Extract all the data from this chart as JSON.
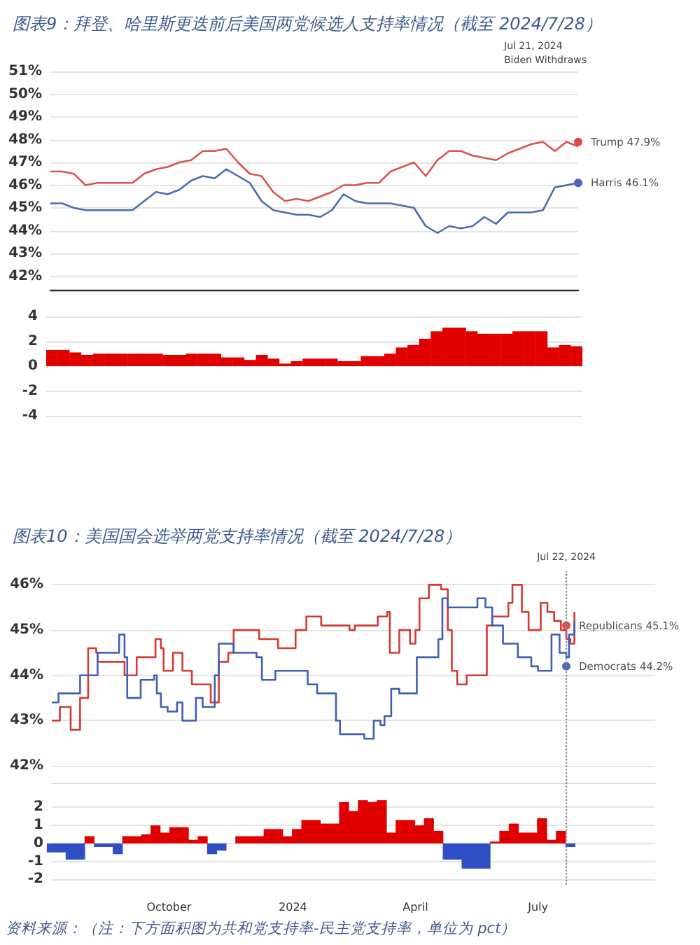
{
  "chart_data": [
    {
      "type": "line",
      "title": "图表9：拜登、哈里斯更迭前后美国两党候选人支持率情况（截至 2024/7/28）",
      "categories": [
        null,
        null,
        null,
        null,
        null,
        null,
        null,
        null,
        null,
        null,
        null,
        null,
        null,
        null,
        null,
        null,
        null,
        null,
        null,
        null,
        null,
        null,
        null,
        null,
        null,
        null,
        null,
        null,
        null,
        null,
        null,
        null,
        null,
        null,
        null,
        null,
        null,
        null,
        null,
        null,
        null,
        null,
        null,
        null,
        null,
        null
      ],
      "ylim": [
        41.4,
        51
      ],
      "yticks": [
        {
          "value": 42,
          "label": "42%"
        },
        {
          "value": 43,
          "label": "43%"
        },
        {
          "value": 44,
          "label": "44%"
        },
        {
          "value": 45,
          "label": "45%"
        },
        {
          "value": 46,
          "label": "46%"
        },
        {
          "value": 47,
          "label": "47%"
        },
        {
          "value": 48,
          "label": "48%"
        },
        {
          "value": 49,
          "label": "49%"
        },
        {
          "value": 50,
          "label": "50%"
        },
        {
          "value": 51,
          "label": "51%"
        }
      ],
      "grid": "y",
      "marker": "none",
      "line_style": "solid",
      "annotations": [
        "Jul 21, 2024\nBiden Withdraws"
      ],
      "series": [
        {
          "color": "#d9534f",
          "values": [
            46.6,
            46.6,
            46.5,
            46.0,
            46.1,
            46.1,
            46.1,
            46.1,
            46.5,
            46.7,
            46.8,
            47.0,
            47.1,
            47.5,
            47.5,
            47.6,
            47.0,
            46.5,
            46.4,
            45.7,
            45.3,
            45.4,
            45.3,
            45.5,
            45.7,
            46.0,
            46.0,
            46.1,
            46.1,
            46.6,
            46.8,
            47.0,
            46.4,
            47.1,
            47.5,
            47.5,
            47.3,
            47.2,
            47.1,
            47.4,
            47.6,
            47.8,
            47.9,
            47.5,
            47.9,
            47.7
          ]
        },
        {
          "color": "#4a6cb0",
          "values": [
            45.2,
            45.2,
            45.0,
            44.9,
            44.9,
            44.9,
            44.9,
            44.9,
            45.3,
            45.7,
            45.6,
            45.8,
            46.2,
            46.4,
            46.3,
            46.7,
            46.4,
            46.1,
            45.3,
            44.9,
            44.8,
            44.7,
            44.7,
            44.6,
            44.9,
            45.6,
            45.3,
            45.2,
            45.2,
            45.2,
            45.1,
            45.0,
            44.2,
            43.9,
            44.2,
            44.1,
            44.2,
            44.6,
            44.3,
            44.8,
            44.8,
            44.8,
            44.9,
            45.9,
            46.0,
            46.1
          ]
        },
        {
          "type": "scatter",
          "marker": "circle",
          "name": "Trump 47.9%",
          "color": "#d62020",
          "values": [
            null,
            null,
            null,
            null,
            null,
            null,
            null,
            null,
            null,
            null,
            null,
            null,
            null,
            null,
            null,
            null,
            null,
            null,
            null,
            null,
            null,
            null,
            null,
            null,
            null,
            null,
            null,
            null,
            null,
            null,
            null,
            null,
            null,
            null,
            null,
            null,
            null,
            null,
            null,
            null,
            null,
            null,
            null,
            null,
            null,
            47.9
          ]
        },
        {
          "type": "scatter",
          "marker": "circle",
          "name": "Harris 46.1%",
          "color": "#2040b0",
          "values": [
            null,
            null,
            null,
            null,
            null,
            null,
            null,
            null,
            null,
            null,
            null,
            null,
            null,
            null,
            null,
            null,
            null,
            null,
            null,
            null,
            null,
            null,
            null,
            null,
            null,
            null,
            null,
            null,
            null,
            null,
            null,
            null,
            null,
            null,
            null,
            null,
            null,
            null,
            null,
            null,
            null,
            null,
            null,
            null,
            null,
            46.1
          ]
        }
      ]
    },
    {
      "type": "bar",
      "categories": [
        null,
        null,
        null,
        null,
        null,
        null,
        null,
        null,
        null,
        null,
        null,
        null,
        null,
        null,
        null,
        null,
        null,
        null,
        null,
        null,
        null,
        null,
        null,
        null,
        null,
        null,
        null,
        null,
        null,
        null,
        null,
        null,
        null,
        null,
        null,
        null,
        null,
        null,
        null,
        null,
        null,
        null,
        null,
        null,
        null,
        null
      ],
      "ylim": [
        -4,
        4
      ],
      "yticks": [
        -4,
        -2,
        0,
        2,
        4
      ],
      "grid": "y",
      "series": [
        {
          "color": "#e00000",
          "values": [
            1.3,
            1.3,
            1.1,
            0.9,
            1.0,
            1.0,
            1.0,
            1.0,
            1.0,
            1.0,
            0.9,
            0.9,
            1.0,
            1.0,
            1.0,
            0.7,
            0.7,
            0.5,
            0.9,
            0.6,
            0.2,
            0.4,
            0.6,
            0.6,
            0.6,
            0.4,
            0.4,
            0.8,
            0.8,
            1.0,
            1.5,
            1.7,
            2.2,
            2.8,
            3.1,
            3.1,
            2.8,
            2.6,
            2.6,
            2.6,
            2.8,
            2.8,
            2.8,
            1.5,
            1.7,
            1.6
          ]
        }
      ]
    },
    {
      "type": "step",
      "title": "图表10：美国国会选举两党支持率情况（截至 2024/7/28）",
      "xlim": [
        "2023-07-06",
        "2024-09-26"
      ],
      "ylim": [
        41.6,
        46.3
      ],
      "yticks": [
        {
          "value": 42,
          "label": "42%"
        },
        {
          "value": 43,
          "label": "43%"
        },
        {
          "value": 44,
          "label": "44%"
        },
        {
          "value": 45,
          "label": "45%"
        },
        {
          "value": 46,
          "label": "46%"
        }
      ],
      "tick_labels": "y",
      "grid": "y",
      "marker": "none",
      "line_style": "solid",
      "ref_lines": [
        {
          "axis": "x",
          "value": "2024-07-22",
          "label": "Jul 22, 2024",
          "color": "#8a8a8a",
          "line_style": "dotted"
        }
      ],
      "series": [
        {
          "color": "#d23a32",
          "x": [
            "2023-07-06",
            "2023-07-12",
            "2023-07-20",
            "2023-07-27",
            "2023-08-02",
            "2023-08-08",
            "2023-08-09",
            "2023-08-29",
            "2023-09-07",
            "2023-09-21",
            "2023-09-25",
            "2023-09-27",
            "2023-10-04",
            "2023-10-11",
            "2023-10-18",
            "2023-11-01",
            "2023-11-07",
            "2023-11-14",
            "2023-11-18",
            "2023-12-07",
            "2023-12-21",
            "2024-01-03",
            "2024-01-11",
            "2024-01-22",
            "2024-02-12",
            "2024-02-16",
            "2024-03-04",
            "2024-03-11",
            "2024-03-13",
            "2024-03-20",
            "2024-03-28",
            "2024-04-01",
            "2024-04-04",
            "2024-04-11",
            "2024-04-20",
            "2024-04-25",
            "2024-04-28",
            "2024-05-02",
            "2024-05-09",
            "2024-05-24",
            "2024-05-28",
            "2024-06-09",
            "2024-06-12",
            "2024-06-19",
            "2024-06-24",
            "2024-07-03",
            "2024-07-08",
            "2024-07-13",
            "2024-07-18",
            "2024-07-22",
            "2024-07-25",
            "2024-07-28"
          ],
          "values": [
            43.0,
            43.3,
            42.8,
            43.5,
            44.6,
            44.5,
            44.3,
            44.0,
            44.4,
            44.8,
            44.6,
            44.1,
            44.5,
            44.1,
            43.8,
            43.4,
            44.3,
            44.5,
            45.0,
            44.8,
            44.6,
            45.0,
            45.3,
            45.1,
            45.0,
            45.1,
            45.3,
            45.4,
            44.5,
            45.0,
            44.7,
            45.0,
            45.7,
            46.0,
            45.9,
            45.0,
            44.1,
            43.8,
            44.0,
            45.1,
            45.3,
            45.6,
            46.0,
            45.4,
            45.0,
            45.6,
            45.4,
            45.2,
            45.0,
            44.8,
            44.7,
            45.4
          ]
        },
        {
          "color": "#3f5fb5",
          "x": [
            "2023-07-06",
            "2023-07-11",
            "2023-07-27",
            "2023-08-09",
            "2023-08-25",
            "2023-08-29",
            "2023-08-31",
            "2023-09-10",
            "2023-09-20",
            "2023-09-22",
            "2023-09-25",
            "2023-09-30",
            "2023-10-07",
            "2023-10-11",
            "2023-10-21",
            "2023-10-26",
            "2023-11-04",
            "2023-11-07",
            "2023-11-18",
            "2023-12-05",
            "2023-12-09",
            "2023-12-19",
            "2024-01-12",
            "2024-01-19",
            "2024-02-02",
            "2024-02-05",
            "2024-02-23",
            "2024-03-01",
            "2024-03-06",
            "2024-03-09",
            "2024-03-14",
            "2024-03-20",
            "2024-04-02",
            "2024-04-18",
            "2024-04-21",
            "2024-04-25",
            "2024-05-17",
            "2024-05-23",
            "2024-05-28",
            "2024-06-05",
            "2024-06-16",
            "2024-06-26",
            "2024-07-01",
            "2024-07-11",
            "2024-07-17",
            "2024-07-22",
            "2024-07-24",
            "2024-07-28"
          ],
          "values": [
            43.4,
            43.6,
            44.0,
            44.5,
            44.9,
            44.4,
            43.5,
            43.9,
            44.0,
            43.6,
            43.3,
            43.2,
            43.4,
            43.0,
            43.5,
            43.3,
            44.0,
            44.7,
            44.5,
            44.4,
            43.9,
            44.1,
            43.8,
            43.6,
            43.0,
            42.7,
            42.6,
            43.0,
            42.9,
            43.1,
            43.7,
            43.6,
            44.4,
            44.8,
            45.7,
            45.5,
            45.7,
            45.5,
            45.1,
            44.7,
            44.4,
            44.2,
            44.1,
            44.9,
            44.5,
            44.4,
            44.9,
            45.2
          ]
        },
        {
          "type": "scatter",
          "marker": "circle",
          "name": "Republicans 45.1%",
          "color": "#d62020",
          "x": [
            "2024-07-22"
          ],
          "values": [
            45.1
          ]
        },
        {
          "type": "scatter",
          "marker": "circle",
          "name": "Democrats 44.2%",
          "color": "#2040b0",
          "x": [
            "2024-07-22"
          ],
          "values": [
            44.2
          ]
        }
      ]
    },
    {
      "type": "bar",
      "xlim": [
        "2023-07-06",
        "2024-09-26"
      ],
      "xticks": [
        {
          "value": "2023-10-01",
          "label": "October"
        },
        {
          "value": "2024-01-01",
          "label": "2024"
        },
        {
          "value": "2024-04-01",
          "label": "April"
        },
        {
          "value": "2024-07-01",
          "label": "July"
        }
      ],
      "ylim": [
        -2.3,
        3.3
      ],
      "yticks": [
        -2,
        -1,
        0,
        1,
        2
      ],
      "grid": "y",
      "ref_lines": [
        {
          "axis": "x",
          "value": "2024-07-22",
          "color": "#8a8a8a",
          "line_style": "dotted"
        }
      ],
      "annotations": [
        "资料来源：（注：下方面积图为共和党支持率-民主党支持率，单位为 pct）"
      ],
      "x": [
        "2023-07-06",
        "2023-07-13",
        "2023-07-20",
        "2023-07-27",
        "2023-08-03",
        "2023-08-10",
        "2023-08-17",
        "2023-08-24",
        "2023-08-31",
        "2023-09-07",
        "2023-09-14",
        "2023-09-21",
        "2023-09-28",
        "2023-10-05",
        "2023-10-12",
        "2023-10-19",
        "2023-10-26",
        "2023-11-02",
        "2023-11-09",
        "2023-11-16",
        "2023-11-23",
        "2023-11-30",
        "2023-12-07",
        "2023-12-14",
        "2023-12-21",
        "2023-12-28",
        "2024-01-04",
        "2024-01-11",
        "2024-01-18",
        "2024-01-25",
        "2024-02-01",
        "2024-02-08",
        "2024-02-15",
        "2024-02-22",
        "2024-02-29",
        "2024-03-07",
        "2024-03-14",
        "2024-03-21",
        "2024-03-28",
        "2024-04-04",
        "2024-04-11",
        "2024-04-18",
        "2024-04-25",
        "2024-05-02",
        "2024-05-09",
        "2024-05-16",
        "2024-05-23",
        "2024-05-30",
        "2024-06-06",
        "2024-06-13",
        "2024-06-20",
        "2024-06-27",
        "2024-07-04",
        "2024-07-11",
        "2024-07-18",
        "2024-07-25"
      ],
      "values": [
        -0.5,
        -0.5,
        -0.9,
        -0.9,
        0.4,
        -0.2,
        -0.2,
        -0.6,
        0.4,
        0.4,
        0.5,
        1.0,
        0.6,
        0.9,
        0.9,
        0.2,
        0.4,
        -0.6,
        -0.4,
        0,
        0.4,
        0.4,
        0.4,
        0.8,
        0.8,
        0.4,
        0.8,
        1.3,
        1.3,
        1.1,
        1.1,
        2.3,
        1.8,
        2.4,
        2.3,
        2.4,
        0.6,
        1.3,
        1.3,
        1.0,
        1.4,
        0.7,
        -0.9,
        -0.9,
        -1.4,
        -1.4,
        -1.4,
        0.1,
        0.7,
        1.1,
        0.6,
        0.6,
        1.4,
        0.2,
        0.7,
        -0.2
      ],
      "colors": [
        "#2f4fc4",
        "#2f4fc4",
        "#2f4fc4",
        "#2f4fc4",
        "#e00000",
        "#2f4fc4",
        "#2f4fc4",
        "#2f4fc4",
        "#e00000",
        "#e00000",
        "#e00000",
        "#e00000",
        "#e00000",
        "#e00000",
        "#e00000",
        "#e00000",
        "#e00000",
        "#2f4fc4",
        "#2f4fc4",
        "#e00000",
        "#e00000",
        "#e00000",
        "#e00000",
        "#e00000",
        "#e00000",
        "#e00000",
        "#e00000",
        "#e00000",
        "#e00000",
        "#e00000",
        "#e00000",
        "#e00000",
        "#e00000",
        "#e00000",
        "#e00000",
        "#e00000",
        "#e00000",
        "#e00000",
        "#e00000",
        "#e00000",
        "#e00000",
        "#e00000",
        "#2f4fc4",
        "#2f4fc4",
        "#2f4fc4",
        "#2f4fc4",
        "#2f4fc4",
        "#e00000",
        "#e00000",
        "#e00000",
        "#e00000",
        "#e00000",
        "#e00000",
        "#e00000",
        "#e00000",
        "#2f4fc4"
      ]
    }
  ]
}
